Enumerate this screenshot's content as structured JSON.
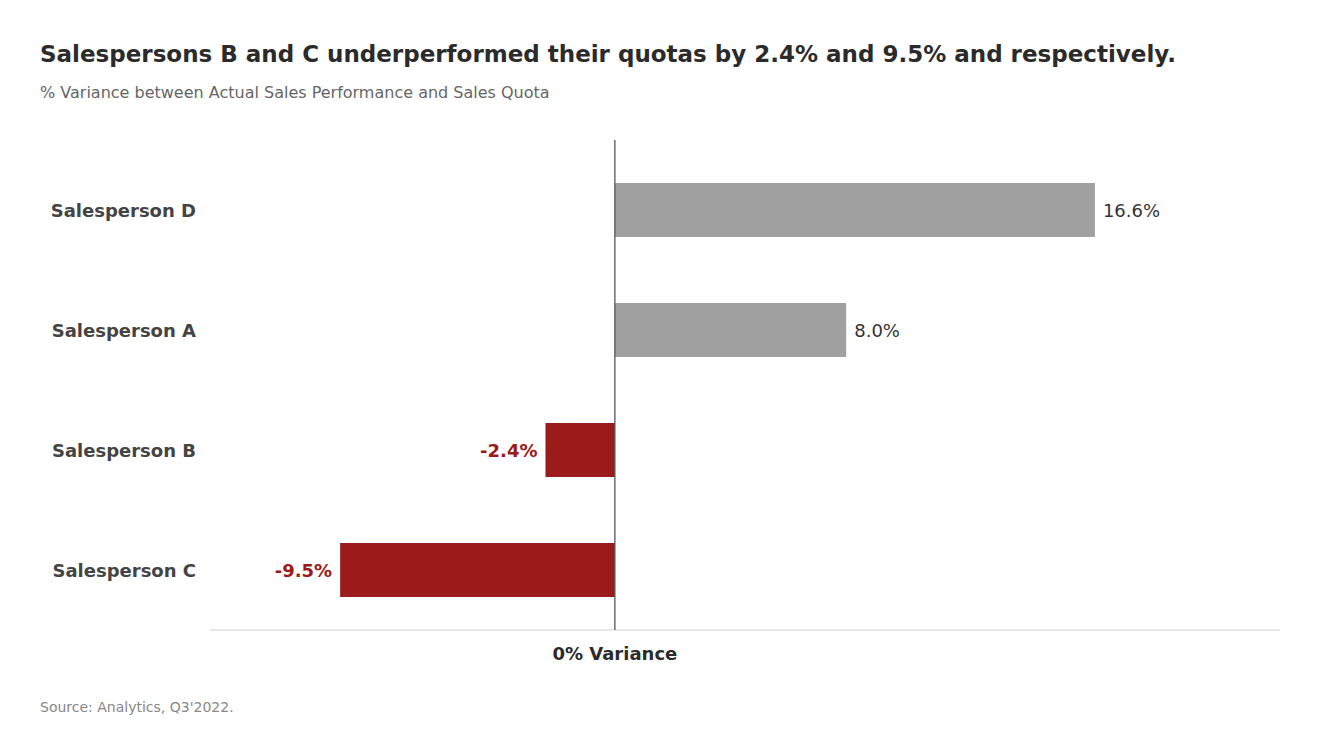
{
  "chart_data": {
    "type": "bar",
    "orientation": "horizontal",
    "title": "Salespersons B and C underperformed their quotas by 2.4% and 9.5% and respectively.",
    "subtitle": "% Variance between Actual Sales Performance and Sales Quota",
    "xlabel": "0% Variance",
    "source": "Source: Analytics, Q3'2022.",
    "categories": [
      "Salesperson C",
      "Salesperson B",
      "Salesperson A",
      "Salesperson D"
    ],
    "values": [
      -9.5,
      -2.4,
      8.0,
      16.6
    ],
    "value_labels": [
      "-9.5%",
      "-2.4%",
      "8.0%",
      "16.6%"
    ],
    "colors": [
      "#9b1a1a",
      "#9b1a1a",
      "#a0a0a0",
      "#a0a0a0"
    ],
    "xlim": [
      -14,
      23
    ],
    "data_labels": true,
    "tick_labels": "y",
    "grid": false
  }
}
